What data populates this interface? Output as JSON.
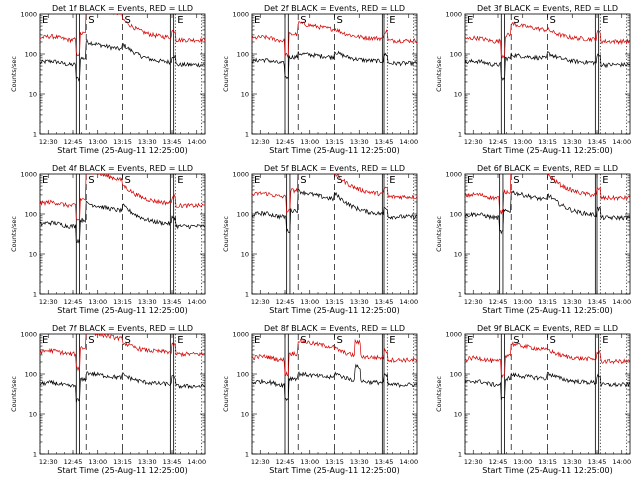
{
  "chart_data": {
    "type": "line",
    "panel_common": {
      "xlabel": "Start Time (25-Aug-11 12:25:00)",
      "ylabel": "Counts/sec",
      "x_tick_labels": [
        "12:30",
        "12:45",
        "13:00",
        "13:15",
        "13:30",
        "13:45",
        "14:00"
      ],
      "x_tick_minutes": [
        5,
        20,
        35,
        50,
        65,
        80,
        95
      ],
      "xlim_minutes": [
        0,
        100
      ],
      "y_scale": "log",
      "ylim": [
        1,
        1000
      ],
      "y_tick_labels": [
        "1",
        "10",
        "100",
        "1000"
      ],
      "grid": false,
      "legend": "none",
      "colors": {
        "Events": "#000000",
        "LLD": "#d40000"
      },
      "markers": [
        {
          "label": "E",
          "minute": 0,
          "style": "dotted"
        },
        {
          "label": "S",
          "minute": 28,
          "style": "dashed"
        },
        {
          "label": "S",
          "minute": 50,
          "style": "dashed"
        },
        {
          "label": "E",
          "minute": 82,
          "style": "dotted"
        },
        {
          "label": "",
          "minute": 98,
          "style": "dotted"
        }
      ]
    },
    "panels": [
      {
        "title": "Det 1f BLACK = Events, RED = LLD",
        "events_base": 60,
        "lld_base": 250,
        "flare": 2,
        "spike": 0,
        "saa_minutes": [
          22,
          24
        ],
        "saa_end": [
          79,
          81
        ]
      },
      {
        "title": "Det 2f BLACK = Events, RED = LLD",
        "events_base": 65,
        "lld_base": 240,
        "flare": 0.5,
        "spike": 0,
        "saa_minutes": [
          20,
          22
        ],
        "saa_end": [
          79,
          80
        ]
      },
      {
        "title": "Det 3f BLACK = Events, RED = LLD",
        "events_base": 60,
        "lld_base": 230,
        "flare": 0.5,
        "spike": 0,
        "saa_minutes": [
          22,
          24
        ],
        "saa_end": [
          79,
          81
        ]
      },
      {
        "title": "Det 4f BLACK = Events, RED = LLD",
        "events_base": 55,
        "lld_base": 180,
        "flare": 2,
        "spike": 0,
        "saa_minutes": [
          22,
          24
        ],
        "saa_end": [
          79,
          81
        ]
      },
      {
        "title": "Det 5f BLACK = Events, RED = LLD",
        "events_base": 95,
        "lld_base": 300,
        "flare": 2.5,
        "spike": 0,
        "saa_minutes": [
          21,
          23
        ],
        "saa_end": [
          79,
          80
        ]
      },
      {
        "title": "Det 6f BLACK = Events, RED = LLD",
        "events_base": 90,
        "lld_base": 280,
        "flare": 2.5,
        "spike": 0,
        "saa_minutes": [
          21,
          23
        ],
        "saa_end": [
          79,
          80
        ]
      },
      {
        "title": "Det 7f BLACK = Events, RED = LLD",
        "events_base": 55,
        "lld_base": 350,
        "flare": 0.8,
        "spike": 0,
        "saa_minutes": [
          22,
          24
        ],
        "saa_end": [
          79,
          81
        ]
      },
      {
        "title": "Det 8f BLACK = Events, RED = LLD",
        "events_base": 60,
        "lld_base": 250,
        "flare": 0.6,
        "spike": 1,
        "saa_minutes": [
          20,
          22
        ],
        "saa_end": [
          79,
          80
        ]
      },
      {
        "title": "Det 9f BLACK = Events, RED = LLD",
        "events_base": 60,
        "lld_base": 230,
        "flare": 0.5,
        "spike": 0,
        "saa_minutes": [
          22,
          24
        ],
        "saa_end": [
          79,
          81
        ]
      }
    ]
  }
}
